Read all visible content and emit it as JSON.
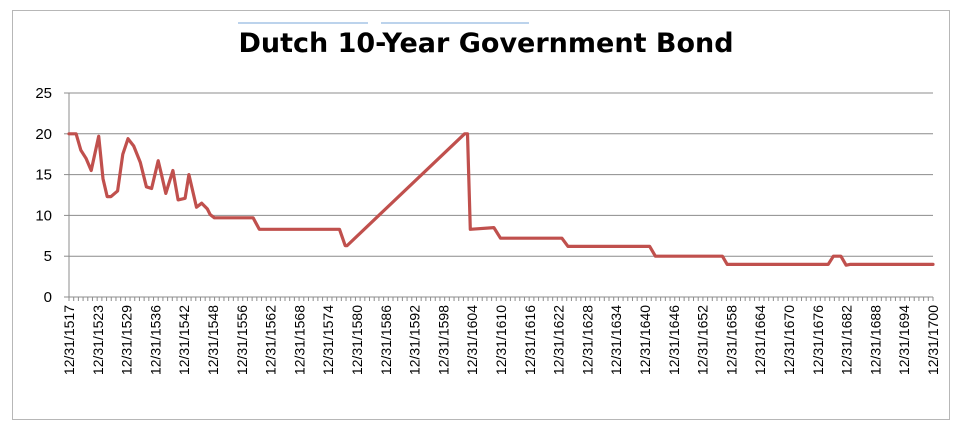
{
  "chart_data": {
    "type": "line",
    "title": "Dutch 10-Year Government Bond",
    "xlabel": "",
    "ylabel": "",
    "ylim": [
      0,
      25
    ],
    "yticks": [
      0,
      5,
      10,
      15,
      20,
      25
    ],
    "grid": true,
    "legend": "none",
    "line_color": "#c0504d",
    "xlim": [
      1517,
      1700
    ],
    "xtick_labels": [
      "12/31/1517",
      "12/31/1523",
      "12/31/1529",
      "12/31/1536",
      "12/31/1542",
      "12/31/1548",
      "12/31/1556",
      "12/31/1562",
      "12/31/1568",
      "12/31/1574",
      "12/31/1580",
      "12/31/1586",
      "12/31/1592",
      "12/31/1598",
      "12/31/1604",
      "12/31/1610",
      "12/31/1616",
      "12/31/1622",
      "12/31/1628",
      "12/31/1634",
      "12/31/1640",
      "12/31/1646",
      "12/31/1652",
      "12/31/1658",
      "12/31/1664",
      "12/31/1670",
      "12/31/1676",
      "12/31/1682",
      "12/31/1688",
      "12/31/1694",
      "12/31/1700"
    ],
    "series": [
      {
        "x": [
          1517,
          1518.5,
          1519.5,
          1520.6,
          1521.7,
          1523.3,
          1524.2,
          1525.1,
          1525.9,
          1527.3,
          1528.4,
          1529.5,
          1530.7,
          1532.1,
          1533.4,
          1534.5,
          1535.9,
          1536.6,
          1537.5,
          1539.0,
          1540.1,
          1541.6,
          1542.4,
          1544.0,
          1545.1,
          1546.3,
          1546.9,
          1547.8,
          1549.0,
          1550.0,
          1551.0,
          1556.0,
          1557.3,
          1574.3,
          1575.5,
          1575.9,
          1600.8,
          1601.4,
          1602.0,
          1607.0,
          1608.4,
          1621.4,
          1622.7,
          1640.0,
          1641.2,
          1655.4,
          1656.4,
          1660,
          1677.8,
          1678.9,
          1680.5,
          1681.6,
          1682.4,
          1684,
          1690,
          1700
        ],
        "y": [
          20,
          20,
          18,
          17,
          15.5,
          19.7,
          14.5,
          12.3,
          12.3,
          13.0,
          17.5,
          19.4,
          18.5,
          16.5,
          13.5,
          13.3,
          16.7,
          15,
          12.7,
          15.5,
          11.9,
          12.1,
          15,
          11,
          11.5,
          10.8,
          10.1,
          9.7,
          9.7,
          9.7,
          9.7,
          9.7,
          8.3,
          8.3,
          6.3,
          6.3,
          20,
          20,
          8.3,
          8.5,
          7.2,
          7.2,
          6.2,
          6.2,
          5,
          5,
          4,
          4,
          4,
          5,
          5,
          3.9,
          4,
          4,
          4,
          4
        ]
      }
    ]
  }
}
